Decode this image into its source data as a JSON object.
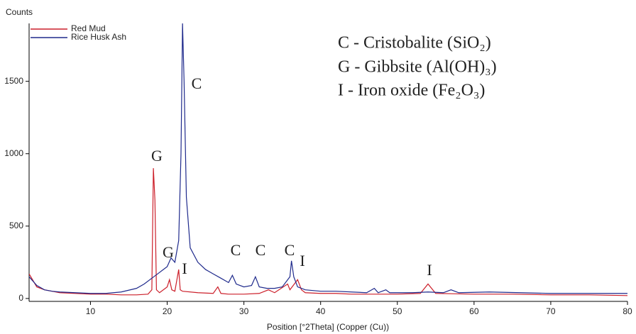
{
  "chart_data": {
    "type": "line",
    "y_label": "Counts",
    "x_label": "Position [°2Theta] (Copper (Cu))",
    "xlim": [
      2,
      80
    ],
    "ylim": [
      -20,
      1900
    ],
    "xticks": [
      10,
      20,
      30,
      40,
      50,
      60,
      70,
      80
    ],
    "yticks": [
      0,
      500,
      1000,
      1500
    ],
    "legend": "top-left",
    "annotations": [
      "C - Cristobalite (SiO₂)",
      "G - Gibbsite (Al(OH)₃)",
      "I - Iron oxide (Fe₂O₃)"
    ],
    "peak_labels": [
      "G",
      "C",
      "G",
      "I",
      "C",
      "C",
      "C",
      "I",
      "I"
    ],
    "series": [
      {
        "name": "Red Mud",
        "color": "#cc1f2a",
        "x": [
          2,
          3,
          4,
          6,
          8,
          10,
          12,
          14,
          16,
          17.5,
          18,
          18.2,
          18.4,
          18.6,
          19,
          20,
          20.3,
          20.6,
          21,
          21.5,
          21.7,
          22,
          24,
          26,
          26.6,
          27,
          28,
          30,
          32,
          33.2,
          34,
          35.7,
          36,
          37,
          37.5,
          38,
          40,
          42,
          44,
          50,
          53,
          54,
          55,
          60,
          65,
          70,
          75,
          80
        ],
        "values": [
          170,
          80,
          60,
          40,
          35,
          30,
          30,
          25,
          25,
          30,
          60,
          900,
          680,
          60,
          40,
          80,
          130,
          60,
          50,
          200,
          60,
          50,
          40,
          35,
          80,
          35,
          30,
          30,
          35,
          60,
          40,
          100,
          60,
          130,
          60,
          40,
          35,
          35,
          30,
          30,
          35,
          100,
          35,
          30,
          30,
          25,
          25,
          20
        ]
      },
      {
        "name": "Rice Husk Ash",
        "color": "#1f2a8c",
        "x": [
          2,
          3,
          4,
          5,
          6,
          8,
          10,
          12,
          14,
          16,
          17,
          18,
          19,
          20,
          20.5,
          21,
          21.5,
          21.8,
          22,
          22.2,
          22.5,
          23,
          24,
          25,
          26,
          27,
          28,
          28.5,
          29,
          30,
          31,
          31.5,
          32,
          33,
          34,
          35,
          36,
          36.2,
          36.5,
          37,
          38,
          40,
          42,
          44,
          46,
          47,
          47.5,
          48.5,
          49,
          52,
          54,
          56,
          57,
          58,
          62,
          66,
          70,
          75,
          80
        ],
        "values": [
          150,
          90,
          60,
          50,
          45,
          40,
          35,
          35,
          45,
          70,
          100,
          140,
          180,
          220,
          280,
          250,
          400,
          1000,
          1900,
          1500,
          700,
          350,
          250,
          200,
          170,
          140,
          110,
          160,
          100,
          80,
          90,
          150,
          80,
          70,
          70,
          80,
          150,
          260,
          150,
          80,
          60,
          50,
          50,
          45,
          40,
          70,
          40,
          60,
          40,
          40,
          45,
          40,
          60,
          40,
          45,
          40,
          35,
          35,
          35
        ]
      }
    ]
  }
}
